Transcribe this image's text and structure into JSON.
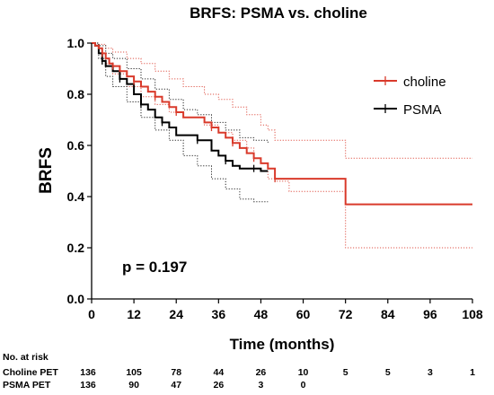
{
  "chart_data": {
    "type": "line",
    "title": "BRFS: PSMA vs. choline",
    "xlabel": "Time (months)",
    "ylabel": "BRFS",
    "xlim": [
      0,
      108
    ],
    "ylim": [
      0,
      1.0
    ],
    "x_ticks": [
      "0",
      "12",
      "24",
      "36",
      "48",
      "60",
      "72",
      "84",
      "96",
      "108"
    ],
    "y_ticks": [
      "0.0",
      "0.2",
      "0.4",
      "0.6",
      "0.8",
      "1.0"
    ],
    "grid": false,
    "legend_position": "top-right",
    "annotation": "p = 0.197",
    "series": [
      {
        "name": "choline",
        "color": "#d93a2b",
        "points": [
          [
            0,
            1.0
          ],
          [
            1,
            0.99
          ],
          [
            2,
            0.98
          ],
          [
            3,
            0.96
          ],
          [
            4,
            0.94
          ],
          [
            5,
            0.92
          ],
          [
            6,
            0.91
          ],
          [
            8,
            0.89
          ],
          [
            10,
            0.87
          ],
          [
            12,
            0.85
          ],
          [
            14,
            0.83
          ],
          [
            16,
            0.81
          ],
          [
            18,
            0.79
          ],
          [
            20,
            0.77
          ],
          [
            22,
            0.75
          ],
          [
            24,
            0.73
          ],
          [
            26,
            0.71
          ],
          [
            32,
            0.69
          ],
          [
            34,
            0.67
          ],
          [
            36,
            0.65
          ],
          [
            38,
            0.63
          ],
          [
            40,
            0.61
          ],
          [
            42,
            0.59
          ],
          [
            44,
            0.57
          ],
          [
            46,
            0.55
          ],
          [
            48,
            0.53
          ],
          [
            50,
            0.51
          ],
          [
            52,
            0.47
          ],
          [
            72,
            0.37
          ],
          [
            108,
            0.37
          ]
        ],
        "upper": [
          [
            0,
            1.0
          ],
          [
            2,
            0.995
          ],
          [
            4,
            0.98
          ],
          [
            6,
            0.965
          ],
          [
            10,
            0.94
          ],
          [
            14,
            0.92
          ],
          [
            18,
            0.89
          ],
          [
            22,
            0.86
          ],
          [
            26,
            0.83
          ],
          [
            32,
            0.8
          ],
          [
            36,
            0.78
          ],
          [
            40,
            0.75
          ],
          [
            44,
            0.72
          ],
          [
            48,
            0.68
          ],
          [
            50,
            0.66
          ],
          [
            52,
            0.62
          ],
          [
            72,
            0.55
          ],
          [
            108,
            0.55
          ]
        ],
        "lower": [
          [
            0,
            1.0
          ],
          [
            2,
            0.96
          ],
          [
            4,
            0.92
          ],
          [
            6,
            0.88
          ],
          [
            10,
            0.83
          ],
          [
            14,
            0.79
          ],
          [
            18,
            0.76
          ],
          [
            22,
            0.73
          ],
          [
            26,
            0.71
          ],
          [
            32,
            0.68
          ],
          [
            36,
            0.65
          ],
          [
            40,
            0.62
          ],
          [
            44,
            0.59
          ],
          [
            46,
            0.55
          ],
          [
            48,
            0.53
          ],
          [
            50,
            0.47
          ],
          [
            52,
            0.46
          ],
          [
            56,
            0.42
          ],
          [
            72,
            0.2
          ],
          [
            108,
            0.2
          ]
        ]
      },
      {
        "name": "PSMA",
        "color": "#000000",
        "points": [
          [
            0,
            1.0
          ],
          [
            1,
            0.99
          ],
          [
            2,
            0.96
          ],
          [
            3,
            0.93
          ],
          [
            4,
            0.91
          ],
          [
            6,
            0.89
          ],
          [
            8,
            0.86
          ],
          [
            10,
            0.84
          ],
          [
            12,
            0.8
          ],
          [
            14,
            0.76
          ],
          [
            16,
            0.74
          ],
          [
            18,
            0.71
          ],
          [
            20,
            0.69
          ],
          [
            22,
            0.67
          ],
          [
            24,
            0.64
          ],
          [
            30,
            0.62
          ],
          [
            34,
            0.58
          ],
          [
            36,
            0.56
          ],
          [
            38,
            0.54
          ],
          [
            40,
            0.52
          ],
          [
            42,
            0.51
          ],
          [
            46,
            0.51
          ],
          [
            48,
            0.5
          ],
          [
            50,
            0.5
          ]
        ],
        "upper": [
          [
            0,
            1.0
          ],
          [
            2,
            0.99
          ],
          [
            4,
            0.96
          ],
          [
            6,
            0.94
          ],
          [
            10,
            0.9
          ],
          [
            14,
            0.86
          ],
          [
            18,
            0.82
          ],
          [
            22,
            0.78
          ],
          [
            26,
            0.74
          ],
          [
            30,
            0.72
          ],
          [
            34,
            0.69
          ],
          [
            38,
            0.66
          ],
          [
            42,
            0.63
          ],
          [
            46,
            0.62
          ],
          [
            50,
            0.61
          ]
        ],
        "lower": [
          [
            0,
            1.0
          ],
          [
            2,
            0.94
          ],
          [
            4,
            0.87
          ],
          [
            6,
            0.83
          ],
          [
            10,
            0.77
          ],
          [
            14,
            0.71
          ],
          [
            18,
            0.66
          ],
          [
            22,
            0.62
          ],
          [
            26,
            0.56
          ],
          [
            30,
            0.52
          ],
          [
            34,
            0.47
          ],
          [
            38,
            0.43
          ],
          [
            42,
            0.39
          ],
          [
            46,
            0.38
          ],
          [
            50,
            0.38
          ]
        ]
      }
    ]
  },
  "risk_table": {
    "title": "No. at risk",
    "rows": [
      {
        "label": "Choline PET",
        "values": [
          "136",
          "105",
          "78",
          "44",
          "26",
          "10",
          "5",
          "5",
          "3",
          "1"
        ]
      },
      {
        "label": "PSMA PET",
        "values": [
          "136",
          "90",
          "47",
          "26",
          "3",
          "0"
        ]
      }
    ]
  }
}
